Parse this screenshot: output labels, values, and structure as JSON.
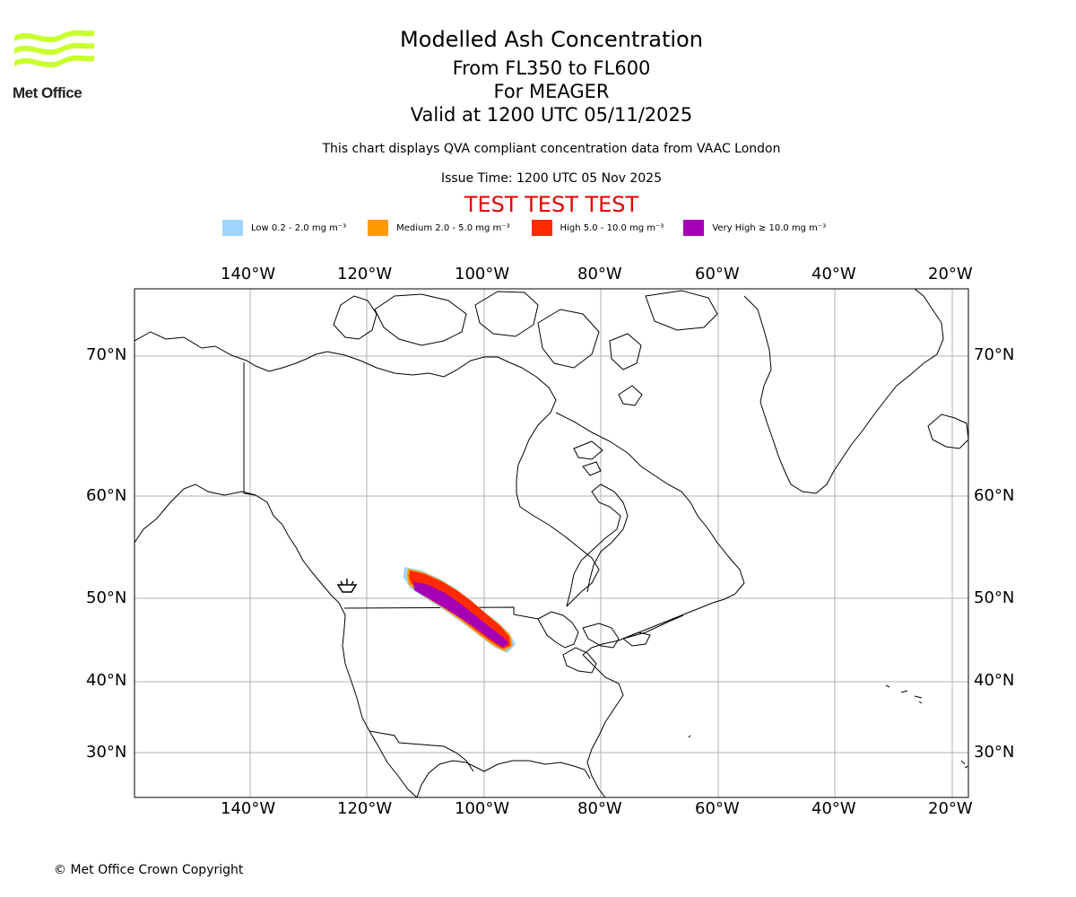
{
  "logo": {
    "text": "Met Office",
    "colors": {
      "waves": "#c8ff2d",
      "text": "#222222"
    }
  },
  "header": {
    "title": "Modelled Ash Concentration",
    "levels": "From FL350 to FL600",
    "volcano": "For MEAGER",
    "valid": "Valid at 1200 UTC 05/11/2025",
    "note": "This chart displays QVA compliant concentration data from VAAC London",
    "issue_time": "Issue Time: 1200 UTC 05 Nov 2025",
    "test_banner": "TEST TEST TEST"
  },
  "legend": [
    {
      "label": "Low 0.2 - 2.0 mg m⁻³",
      "color": "#a0d4ff",
      "gap": 24
    },
    {
      "label": "Medium 2.0 - 5.0 mg m⁻³",
      "color": "#ff9a00",
      "gap": 24
    },
    {
      "label": "High 5.0 - 10.0 mg m⁻³",
      "color": "#ff2a00",
      "gap": 22
    },
    {
      "label": "Very High ≥ 10.0 mg m⁻³",
      "color": "#a600b4",
      "gap": 0
    }
  ],
  "map": {
    "lon_ticks": [
      "140°W",
      "120°W",
      "100°W",
      "80°W",
      "60°W",
      "40°W",
      "20°W"
    ],
    "lat_ticks": [
      "70°N",
      "60°N",
      "50°N",
      "40°N",
      "30°N"
    ],
    "volcano_marker": "Meager",
    "gridline_color": "#b0b0b0"
  },
  "footer": {
    "copyright": "© Met Office Crown Copyright"
  }
}
